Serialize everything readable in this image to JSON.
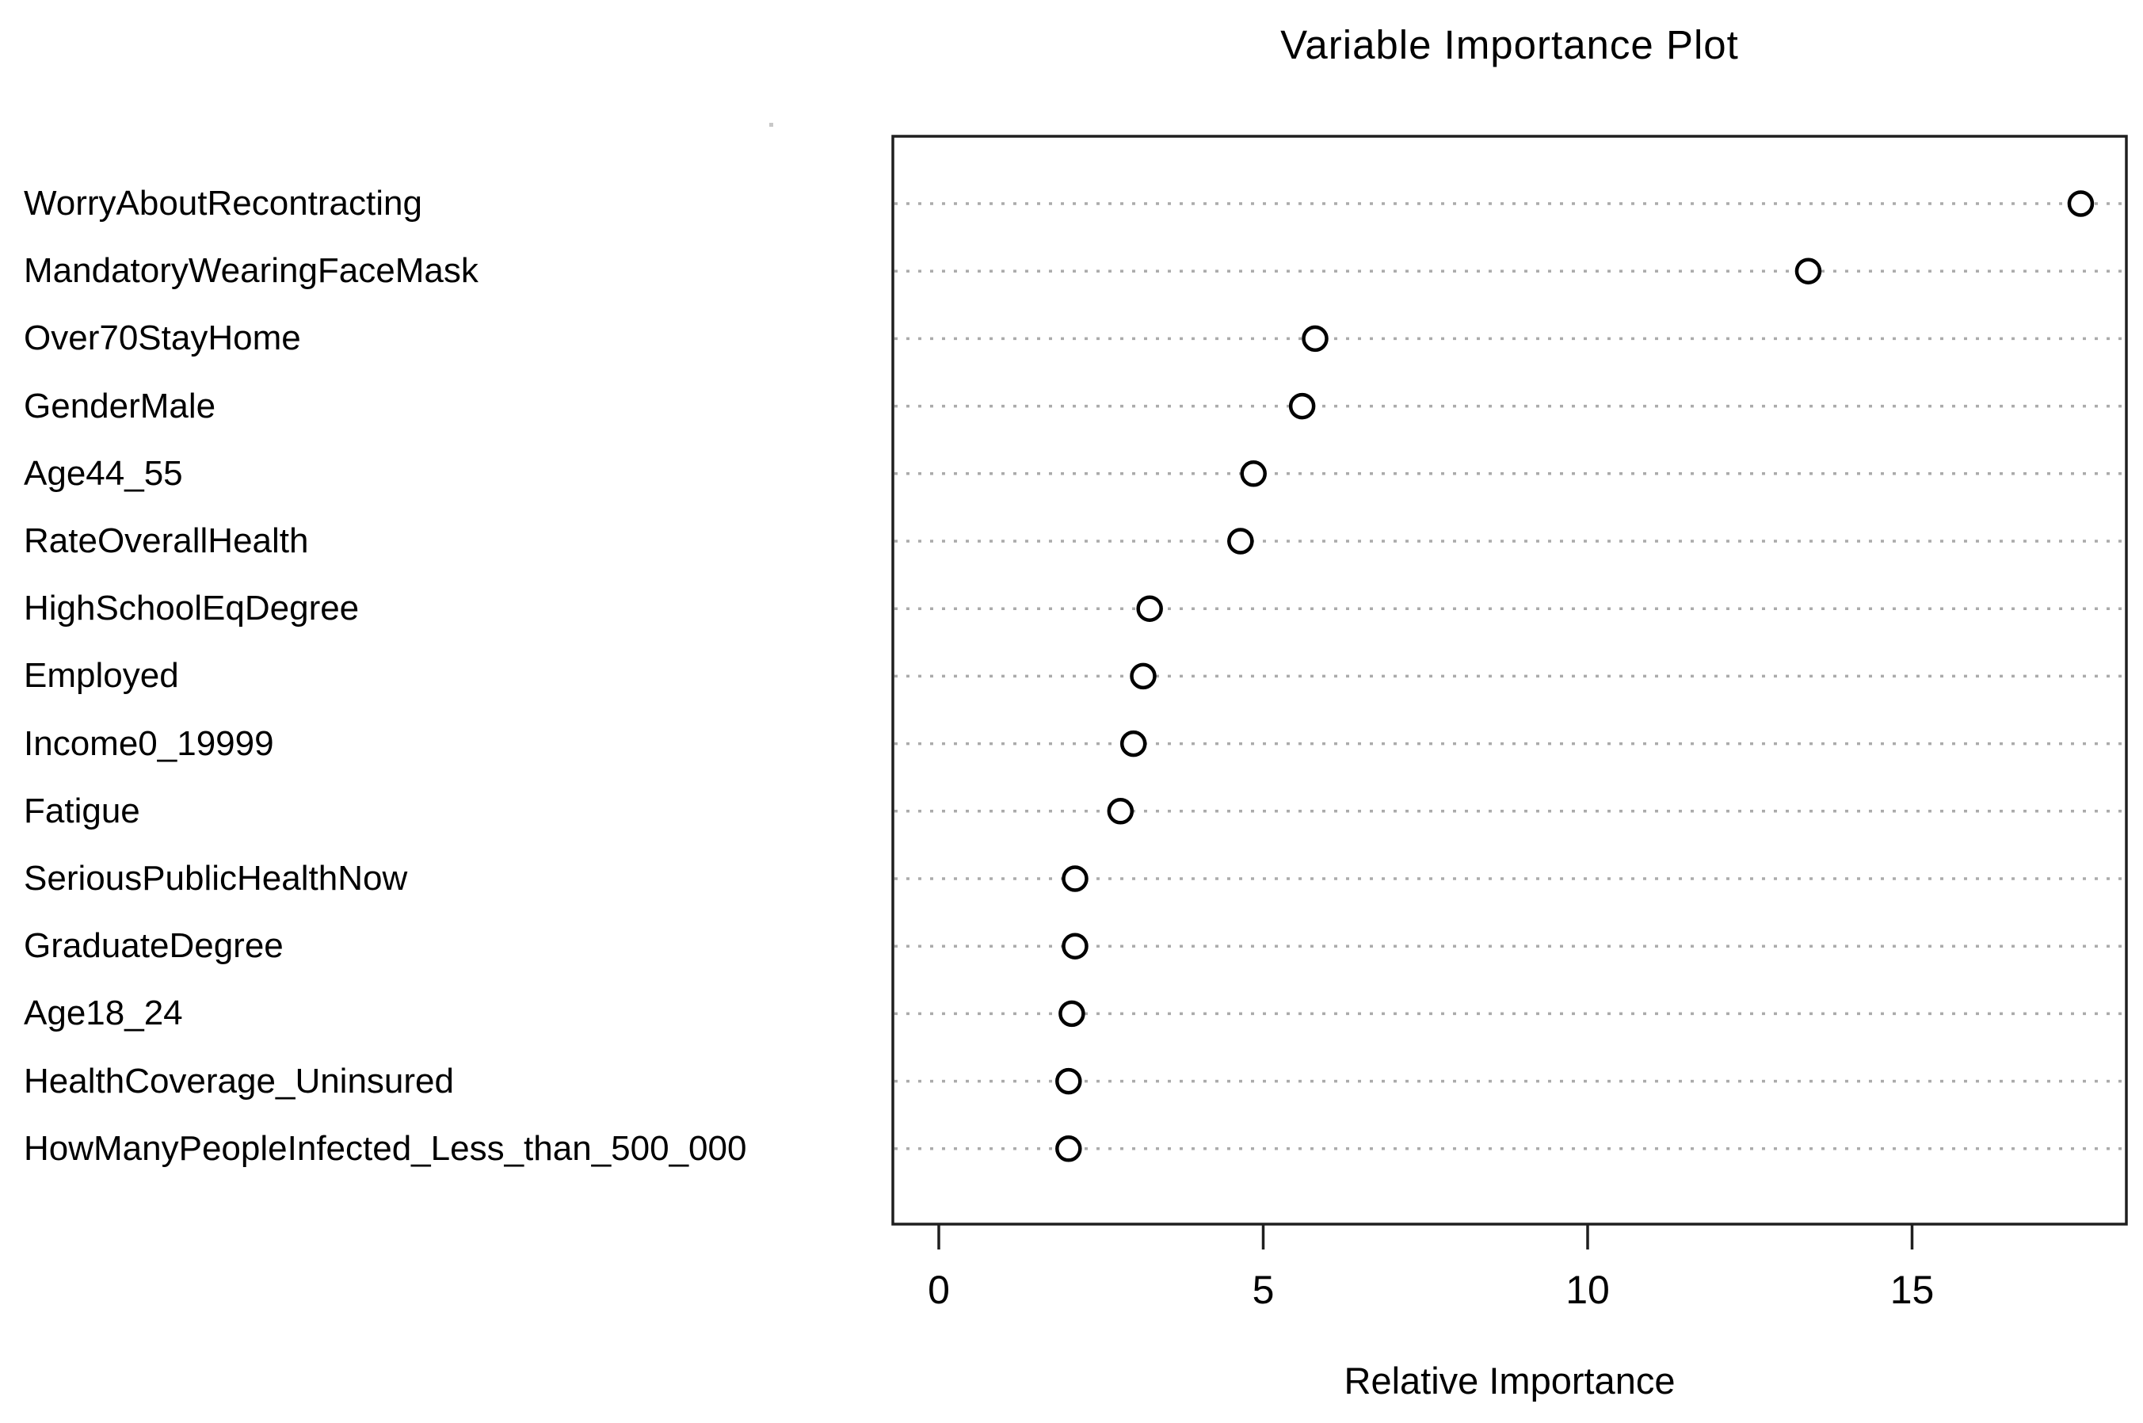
{
  "chart_data": {
    "type": "scatter",
    "variant": "dot-plot",
    "title": "Variable Importance Plot",
    "xlabel": "Relative Importance",
    "ylabel": "",
    "categories": [
      "WorryAboutRecontracting",
      "MandatoryWearingFaceMask",
      "Over70StayHome",
      "GenderMale",
      "Age44_55",
      "RateOverallHealth",
      "HighSchoolEqDegree",
      "Employed",
      "Income0_19999",
      "Fatigue",
      "SeriousPublicHealthNow",
      "GraduateDegree",
      "Age18_24",
      "HealthCoverage_Uninsured",
      "HowManyPeopleInfected_Less_than_500_000"
    ],
    "values": [
      17.6,
      13.4,
      5.8,
      5.6,
      4.85,
      4.65,
      3.25,
      3.15,
      3.0,
      2.8,
      2.1,
      2.1,
      2.05,
      2.0,
      2.0
    ],
    "x_ticks": [
      0,
      5,
      10,
      15
    ],
    "xlim": [
      -0.7,
      18.3
    ],
    "grid": "horizontal-dotted",
    "legend": "none",
    "marker": "open-circle",
    "colors": {
      "point_stroke": "#000000",
      "point_fill": "#ffffff",
      "gridline": "#ababab",
      "box": "#1f1f1f",
      "text": "#000000",
      "background": "#ffffff"
    }
  }
}
